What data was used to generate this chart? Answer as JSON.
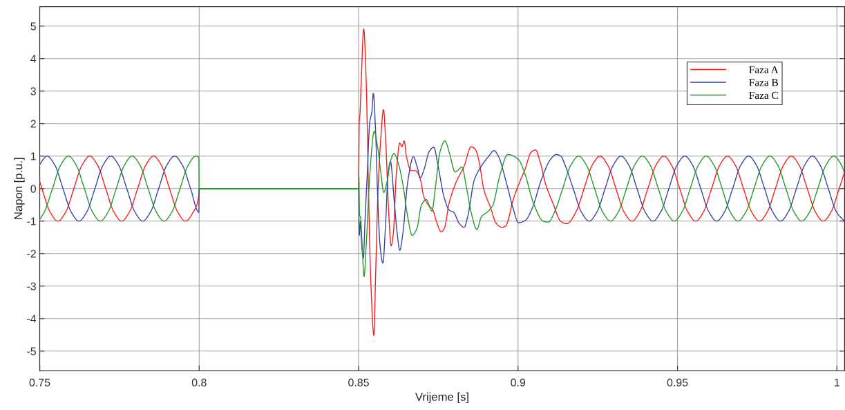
{
  "chart_data": {
    "type": "line",
    "xlabel": "Vrijeme [s]",
    "ylabel": "Napon [p.u.]",
    "xlim": [
      0.75,
      1.0024
    ],
    "xticks": [
      0.75,
      0.8,
      0.85,
      0.9,
      0.95,
      1
    ],
    "ylim": [
      -5.6,
      5.6
    ],
    "yticks": [
      -5,
      -4,
      -3,
      -2,
      -1,
      0,
      1,
      2,
      3,
      4,
      5
    ],
    "grid": true,
    "legend": "top right",
    "marker": "none",
    "line_style": "solid",
    "series": [
      {
        "name": "Faza A",
        "color": "#ff1a1a",
        "x": [
          0.75,
          0.7507,
          0.7532,
          0.7557,
          0.7582,
          0.7607,
          0.7632,
          0.7657,
          0.7682,
          0.7707,
          0.7732,
          0.7757,
          0.7782,
          0.7807,
          0.7832,
          0.7857,
          0.7882,
          0.7907,
          0.7932,
          0.7957,
          0.7982,
          0.7999,
          0.8,
          0.85,
          0.8502,
          0.8504,
          0.8508,
          0.8516,
          0.8524,
          0.8531,
          0.8538,
          0.8548,
          0.8553,
          0.856,
          0.8569,
          0.8578,
          0.8585,
          0.8594,
          0.8602,
          0.8609,
          0.8618,
          0.8629,
          0.8636,
          0.8643,
          0.865,
          0.8665,
          0.8679,
          0.8694,
          0.8704,
          0.8719,
          0.8733,
          0.8744,
          0.8759,
          0.8769,
          0.8784,
          0.8806,
          0.8831,
          0.8853,
          0.8867,
          0.8878,
          0.8892,
          0.8914,
          0.8932,
          0.895,
          0.8961,
          0.8986,
          0.9008,
          0.9022,
          0.9041,
          0.9055,
          0.9069,
          0.9087,
          0.9109,
          0.9134,
          0.9153,
          0.9182,
          0.9207,
          0.9232,
          0.9257,
          0.9282,
          0.9307,
          0.9332,
          0.9357,
          0.9382,
          0.9407,
          0.9432,
          0.9457,
          0.9482,
          0.9507,
          0.9532,
          0.9557,
          0.9582,
          0.9607,
          0.9632,
          0.9657,
          0.9682,
          0.9707,
          0.9732,
          0.9757,
          0.9782,
          0.9807,
          0.9832,
          0.9857,
          0.9882,
          0.9907,
          0.9932,
          0.9957,
          0.9982,
          1.0007,
          1.0024
        ],
        "values": [
          0.22,
          0,
          -0.71,
          -1,
          -0.71,
          0,
          0.71,
          1,
          0.71,
          0,
          -0.71,
          -1,
          -0.71,
          0,
          0.71,
          1,
          0.71,
          0,
          -0.71,
          -1,
          -0.71,
          -0.2,
          0,
          0,
          2.04,
          2.25,
          3.24,
          4.91,
          3.24,
          0,
          -2.79,
          -4.52,
          -2.79,
          -0.3,
          1.47,
          2.43,
          1.47,
          -0.66,
          -1.76,
          -1.37,
          0.41,
          1.4,
          1.29,
          1.47,
          0.98,
          0.55,
          0.55,
          0.27,
          -0.23,
          -0.51,
          -0.66,
          -1.01,
          -1.33,
          -1.22,
          -0.44,
          0.2,
          0.69,
          1.29,
          1.19,
          0.83,
          0,
          -0.59,
          -1.08,
          -1.19,
          -1.15,
          -0.3,
          0.27,
          0.59,
          1.12,
          1.19,
          0.83,
          0.12,
          -0.44,
          -1.01,
          -1.08,
          -0.71,
          0,
          0.71,
          1,
          0.71,
          0,
          -0.71,
          -1,
          -0.71,
          0,
          0.71,
          1,
          0.71,
          0,
          -0.71,
          -1,
          -0.71,
          0,
          0.71,
          1,
          0.71,
          0,
          -0.71,
          -1,
          -0.71,
          0,
          0.71,
          1,
          0.71,
          0,
          -0.71,
          -1,
          -0.71,
          0,
          0.51
        ]
      },
      {
        "name": "Faza B",
        "color": "#3343a8",
        "x": [
          0.75,
          0.7523,
          0.7548,
          0.7573,
          0.7598,
          0.7623,
          0.7648,
          0.7673,
          0.7698,
          0.7723,
          0.7748,
          0.7773,
          0.7798,
          0.7823,
          0.7848,
          0.7873,
          0.7898,
          0.7923,
          0.7948,
          0.7973,
          0.7999,
          0.8,
          0.85,
          0.8502,
          0.8506,
          0.8509,
          0.8515,
          0.852,
          0.8527,
          0.8535,
          0.8542,
          0.8546,
          0.8553,
          0.856,
          0.8567,
          0.8576,
          0.8585,
          0.8592,
          0.86,
          0.8611,
          0.8621,
          0.8629,
          0.8639,
          0.8654,
          0.8672,
          0.8683,
          0.8694,
          0.8704,
          0.8722,
          0.8736,
          0.8748,
          0.8769,
          0.8784,
          0.8798,
          0.8816,
          0.8831,
          0.8842,
          0.8863,
          0.8885,
          0.8907,
          0.8925,
          0.8939,
          0.8965,
          0.8986,
          0.9001,
          0.9023,
          0.9045,
          0.9073,
          0.9102,
          0.912,
          0.9134,
          0.9148,
          0.9173,
          0.9198,
          0.9223,
          0.9248,
          0.9273,
          0.9298,
          0.9323,
          0.9348,
          0.9373,
          0.9398,
          0.9423,
          0.9448,
          0.9473,
          0.9498,
          0.9523,
          0.9548,
          0.9573,
          0.9598,
          0.9623,
          0.9648,
          0.9673,
          0.9698,
          0.9723,
          0.9748,
          0.9773,
          0.9798,
          0.9823,
          0.9848,
          0.9873,
          0.9898,
          0.9923,
          0.9948,
          0.9973,
          0.9998,
          1.0023
        ],
        "values": [
          0.75,
          1,
          0.71,
          0,
          -0.71,
          -1,
          -0.71,
          0,
          0.71,
          1,
          0.71,
          0,
          -0.71,
          -1,
          -0.71,
          0,
          0.71,
          1,
          0.71,
          0,
          -0.73,
          0,
          0,
          -1.44,
          -1.01,
          -1.65,
          -2.14,
          -1.01,
          0.41,
          2.04,
          2.39,
          2.93,
          1.83,
          -0.3,
          -1.72,
          -2.29,
          -1.01,
          0.41,
          0.83,
          -0.3,
          -1.37,
          -1.9,
          -1.37,
          0.2,
          0.98,
          0.69,
          0.34,
          0.55,
          1.15,
          1.27,
          0.76,
          -0.3,
          -0.66,
          -0.73,
          -1.08,
          -1.19,
          -0.87,
          0.27,
          0.69,
          0.98,
          1.17,
          0.98,
          0.12,
          -0.66,
          -1.05,
          -0.98,
          -0.59,
          0.27,
          0.9,
          1.05,
          1.0,
          0.71,
          0,
          -0.71,
          -1,
          -0.71,
          0,
          0.71,
          1,
          0.71,
          0,
          -0.71,
          -1,
          -0.71,
          0,
          0.71,
          1,
          0.71,
          0,
          -0.71,
          -1,
          -0.71,
          0,
          0.71,
          1,
          0.71,
          0,
          -0.71,
          -1,
          -0.71,
          0,
          0.71,
          1,
          0.71,
          0,
          -0.71,
          -1
        ]
      },
      {
        "name": "Faza C",
        "color": "#229a2a",
        "x": [
          0.75,
          0.7515,
          0.754,
          0.7565,
          0.759,
          0.7615,
          0.764,
          0.7665,
          0.769,
          0.7715,
          0.774,
          0.7765,
          0.779,
          0.7815,
          0.784,
          0.7865,
          0.789,
          0.7915,
          0.794,
          0.7965,
          0.799,
          0.7999,
          0.8,
          0.85,
          0.8501,
          0.8503,
          0.8506,
          0.8511,
          0.8517,
          0.8524,
          0.8535,
          0.8549,
          0.856,
          0.8569,
          0.8579,
          0.8589,
          0.86,
          0.8611,
          0.8625,
          0.8639,
          0.8654,
          0.8668,
          0.8683,
          0.8697,
          0.8712,
          0.873,
          0.8741,
          0.8755,
          0.8771,
          0.8784,
          0.8803,
          0.8824,
          0.8838,
          0.8853,
          0.8871,
          0.8885,
          0.8907,
          0.8921,
          0.8943,
          0.8968,
          0.9001,
          0.9023,
          0.9048,
          0.908,
          0.9095,
          0.9115,
          0.914,
          0.9165,
          0.919,
          0.9215,
          0.924,
          0.9265,
          0.929,
          0.9315,
          0.934,
          0.9365,
          0.939,
          0.9415,
          0.944,
          0.9465,
          0.949,
          0.9515,
          0.954,
          0.9565,
          0.959,
          0.9615,
          0.964,
          0.9665,
          0.969,
          0.9715,
          0.974,
          0.9765,
          0.979,
          0.9815,
          0.984,
          0.9865,
          0.989,
          0.9915,
          0.994,
          0.9965,
          0.999,
          1.0015,
          1.0024
        ],
        "values": [
          -0.95,
          -0.71,
          0,
          0.71,
          1,
          0.71,
          0,
          -0.71,
          -1,
          -0.71,
          0,
          0.71,
          1,
          0.71,
          0,
          -0.71,
          -1,
          -0.71,
          0,
          0.71,
          1,
          0.95,
          0,
          0,
          0.37,
          -0.8,
          -0.87,
          -1.72,
          -2.71,
          -1.72,
          0.41,
          1.76,
          1.26,
          0.55,
          -0.12,
          0.2,
          0.83,
          1.08,
          0.76,
          0.12,
          -0.87,
          -1.44,
          -1.22,
          -0.51,
          -0.34,
          -0.69,
          0.05,
          1.12,
          1.47,
          1.12,
          0.51,
          0.66,
          0.05,
          -0.73,
          -1.26,
          -0.87,
          -0.69,
          -0.51,
          0.41,
          1.05,
          0.9,
          0.41,
          -0.44,
          -1.01,
          -1.03,
          -0.71,
          0,
          0.71,
          1,
          0.71,
          0,
          -0.71,
          -1,
          -0.71,
          0,
          0.71,
          1,
          0.71,
          0,
          -0.71,
          -1,
          -0.71,
          0,
          0.71,
          1,
          0.71,
          0,
          -0.71,
          -1,
          -0.71,
          0,
          0.71,
          1,
          0.71,
          0,
          -0.71,
          -1,
          -0.71,
          0,
          0.71,
          1,
          0.71,
          0.48
        ]
      }
    ]
  }
}
